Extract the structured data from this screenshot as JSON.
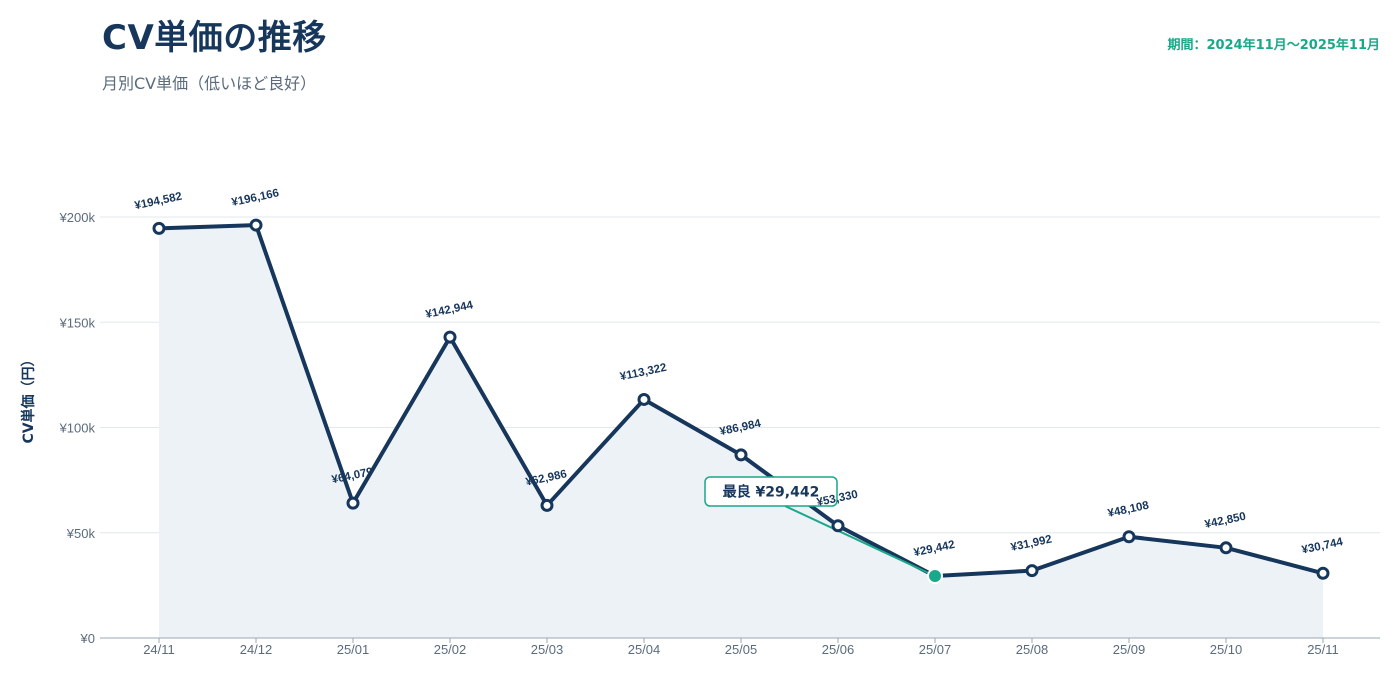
{
  "header": {
    "title": "CV単価の推移",
    "subtitle": "月別CV単価（低いほど良好）",
    "period": "期間：2024年11月〜2025年11月"
  },
  "chart_data": {
    "type": "line",
    "categories": [
      "24/11",
      "24/12",
      "25/01",
      "25/02",
      "25/03",
      "25/04",
      "25/05",
      "25/06",
      "25/07",
      "25/08",
      "25/09",
      "25/10",
      "25/11"
    ],
    "values": [
      194582,
      196166,
      64079,
      142944,
      62986,
      113322,
      86984,
      53330,
      29442,
      31992,
      48108,
      42850,
      30744
    ],
    "value_labels": [
      "¥194,582",
      "¥196,166",
      "¥64,079",
      "¥142,944",
      "¥62,986",
      "¥113,322",
      "¥86,984",
      "¥53,330",
      "¥29,442",
      "¥31,992",
      "¥48,108",
      "¥42,850",
      "¥30,744"
    ],
    "ylabel": "CV単価（円）",
    "ylim": [
      0,
      200000
    ],
    "yticks": [
      0,
      50000,
      100000,
      150000,
      200000
    ],
    "ytick_labels": [
      "¥0",
      "¥50k",
      "¥100k",
      "¥150k",
      "¥200k"
    ],
    "grid": true,
    "area_fill": true,
    "best": {
      "category": "25/07",
      "value": 29442,
      "label": "最良 ¥29,442"
    },
    "colors": {
      "line": "#16365c",
      "area": "#edf2f7",
      "best": "#1aa88a",
      "grid": "#e3e8ee",
      "axis": "#9aa8b6",
      "tick_text": "#5a6b7d"
    }
  }
}
